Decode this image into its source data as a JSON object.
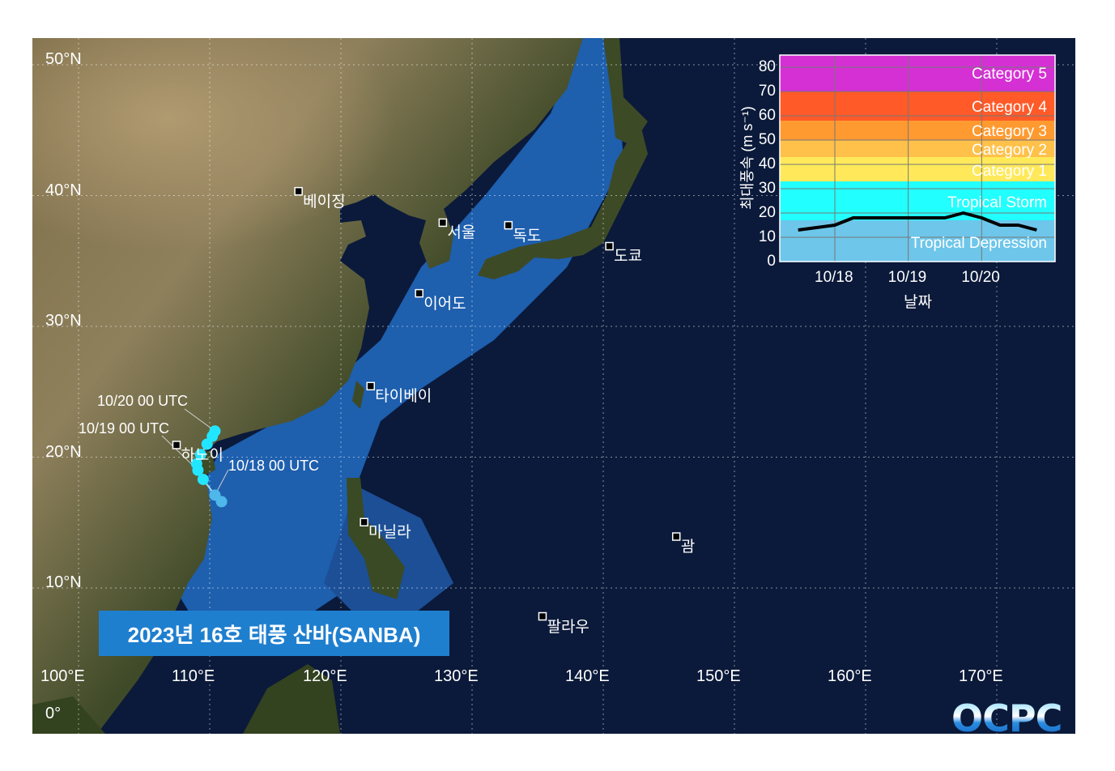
{
  "title": "2023년 16호 태풍 산바(SANBA)",
  "logo": "OCPC",
  "map": {
    "lat_labels": [
      {
        "lat": 50,
        "text": "50°N"
      },
      {
        "lat": 40,
        "text": "40°N"
      },
      {
        "lat": 30,
        "text": "30°N"
      },
      {
        "lat": 20,
        "text": "20°N"
      },
      {
        "lat": 10,
        "text": "10°N"
      },
      {
        "lat": 0,
        "text": "0°"
      }
    ],
    "lon_labels": [
      {
        "lon": 100,
        "text": "100°E"
      },
      {
        "lon": 110,
        "text": "110°E"
      },
      {
        "lon": 120,
        "text": "120°E"
      },
      {
        "lon": 130,
        "text": "130°E"
      },
      {
        "lon": 140,
        "text": "140°E"
      },
      {
        "lon": 150,
        "text": "150°E"
      },
      {
        "lon": 160,
        "text": "160°E"
      },
      {
        "lon": 170,
        "text": "170°E"
      }
    ],
    "cities": [
      {
        "name": "베이징",
        "lon": 116.8,
        "lat": 40.3
      },
      {
        "name": "서울",
        "lon": 127.8,
        "lat": 37.9
      },
      {
        "name": "독도",
        "lon": 132.8,
        "lat": 37.7
      },
      {
        "name": "도쿄",
        "lon": 140.5,
        "lat": 36.1
      },
      {
        "name": "이어도",
        "lon": 126.0,
        "lat": 32.5
      },
      {
        "name": "타이베이",
        "lon": 122.3,
        "lat": 25.4
      },
      {
        "name": "하노이",
        "lon": 107.5,
        "lat": 20.9
      },
      {
        "name": "마닐라",
        "lon": 121.8,
        "lat": 15.0
      },
      {
        "name": "괌",
        "lon": 145.6,
        "lat": 13.9
      },
      {
        "name": "팔라우",
        "lon": 135.4,
        "lat": 7.8
      }
    ],
    "track": [
      {
        "lon": 110.9,
        "lat": 16.6,
        "color": "#4fb8ea"
      },
      {
        "lon": 110.4,
        "lat": 17.1,
        "color": "#4fb8ea"
      },
      {
        "lon": 109.5,
        "lat": 18.3,
        "color": "#22e6ff"
      },
      {
        "lon": 109.1,
        "lat": 19.0,
        "color": "#22e6ff"
      },
      {
        "lon": 109.0,
        "lat": 19.5,
        "color": "#22e6ff"
      },
      {
        "lon": 109.3,
        "lat": 20.2,
        "color": "#22e6ff"
      },
      {
        "lon": 109.8,
        "lat": 21.0,
        "color": "#22e6ff"
      },
      {
        "lon": 110.2,
        "lat": 21.6,
        "color": "#22e6ff"
      },
      {
        "lon": 110.4,
        "lat": 22.0,
        "color": "#22e6ff"
      }
    ],
    "track_labels": [
      "10/20 00 UTC",
      "10/19 00 UTC",
      "10/18 00 UTC"
    ]
  },
  "chart_data": {
    "type": "line",
    "title": "",
    "xlabel": "날짜",
    "ylabel": "최대풍속 (m s⁻¹)",
    "ylim": [
      0,
      85
    ],
    "xlim": [
      "2023-10-17 06:00",
      "2023-10-21 00:00"
    ],
    "yticks": [
      "0",
      "10",
      "20",
      "30",
      "40",
      "50",
      "60",
      "70",
      "80"
    ],
    "xticks": [
      {
        "t": "2023-10-18 00:00",
        "label": "10/18"
      },
      {
        "t": "2023-10-19 00:00",
        "label": "10/19"
      },
      {
        "t": "2023-10-20 00:00",
        "label": "10/20"
      }
    ],
    "grid": true,
    "bands": [
      {
        "name": "Tropical Depression",
        "from": 0,
        "to": 17,
        "color": "#6ec6ea"
      },
      {
        "name": "Tropical Storm",
        "from": 17,
        "to": 33,
        "color": "#22ffff"
      },
      {
        "name": "Category 1",
        "from": 33,
        "to": 43,
        "color": "#ffe95a"
      },
      {
        "name": "Category 2",
        "from": 43,
        "to": 50,
        "color": "#ffc14a"
      },
      {
        "name": "Category 3",
        "from": 50,
        "to": 58,
        "color": "#ff9a30"
      },
      {
        "name": "Category 4",
        "from": 58,
        "to": 70,
        "color": "#ff5a28"
      },
      {
        "name": "Category 5",
        "from": 70,
        "to": 85,
        "color": "#d430d4"
      }
    ],
    "series": [
      {
        "color": "#000000",
        "x": [
          "2023-10-17 12:00",
          "2023-10-17 18:00",
          "2023-10-18 00:00",
          "2023-10-18 06:00",
          "2023-10-18 12:00",
          "2023-10-18 18:00",
          "2023-10-19 00:00",
          "2023-10-19 06:00",
          "2023-10-19 12:00",
          "2023-10-19 18:00",
          "2023-10-20 00:00",
          "2023-10-20 06:00",
          "2023-10-20 12:00",
          "2023-10-20 18:00"
        ],
        "y": [
          13,
          14,
          15,
          18,
          18,
          18,
          18,
          18,
          18,
          20,
          18,
          15,
          15,
          13
        ]
      }
    ]
  }
}
